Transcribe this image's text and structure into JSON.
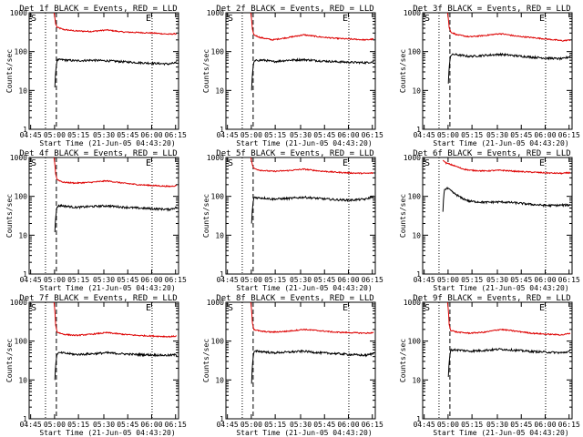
{
  "figure": {
    "title_template": "Det {n}f BLACK = Events, RED = LLD",
    "xlabel": "Start Time (21-Jun-05 04:43:20)",
    "ylabel": "Counts/sec",
    "x_ticks": [
      "04:45",
      "05:00",
      "05:15",
      "05:30",
      "05:45",
      "06:00",
      "06:15"
    ],
    "y_ticks": [
      "1",
      "10",
      "100",
      "1000"
    ],
    "start_marker": "S",
    "end_marker": "E",
    "colors": {
      "events": "#000000",
      "lld": "#dd0000",
      "axes": "#000000"
    }
  },
  "chart_data": [
    {
      "type": "line",
      "detector": "1f",
      "title": "Det 1f BLACK = Events, RED = LLD",
      "xlabel": "Start Time (21-Jun-05 04:43:20)",
      "ylabel": "Counts/sec",
      "yscale": "log",
      "ylim": [
        1,
        1000
      ],
      "xlim_minutes": [
        0,
        96
      ],
      "markers": {
        "start_dotted_min": 10.5,
        "dashed_min": 17.5,
        "end_dotted_min": 79
      },
      "series": [
        {
          "name": "LLD (red)",
          "x_minutes": [
            16,
            17,
            18,
            22,
            30,
            40,
            50,
            60,
            70,
            80,
            90,
            95
          ],
          "values": [
            1000,
            520,
            420,
            370,
            340,
            330,
            360,
            320,
            310,
            300,
            280,
            290
          ]
        },
        {
          "name": "Events (black)",
          "x_minutes": [
            16.5,
            18,
            20,
            25,
            30,
            40,
            50,
            60,
            70,
            80,
            90,
            95
          ],
          "values": [
            12,
            60,
            62,
            60,
            58,
            60,
            58,
            55,
            52,
            50,
            48,
            52
          ]
        }
      ]
    },
    {
      "type": "line",
      "detector": "2f",
      "title": "Det 2f BLACK = Events, RED = LLD",
      "xlabel": "Start Time (21-Jun-05 04:43:20)",
      "ylabel": "Counts/sec",
      "yscale": "log",
      "ylim": [
        1,
        1000
      ],
      "xlim_minutes": [
        0,
        96
      ],
      "markers": {
        "start_dotted_min": 10.5,
        "dashed_min": 17.5,
        "end_dotted_min": 79
      },
      "series": [
        {
          "name": "LLD (red)",
          "x_minutes": [
            16,
            17,
            18,
            22,
            30,
            40,
            50,
            60,
            70,
            80,
            90,
            95
          ],
          "values": [
            1000,
            380,
            270,
            230,
            200,
            230,
            270,
            240,
            220,
            210,
            200,
            210
          ]
        },
        {
          "name": "Events (black)",
          "x_minutes": [
            16.5,
            18,
            20,
            25,
            30,
            40,
            50,
            60,
            70,
            80,
            90,
            95
          ],
          "values": [
            10,
            55,
            60,
            60,
            55,
            60,
            62,
            58,
            55,
            53,
            52,
            55
          ]
        }
      ]
    },
    {
      "type": "line",
      "detector": "3f",
      "title": "Det 3f BLACK = Events, RED = LLD",
      "xlabel": "Start Time (21-Jun-05 04:43:20)",
      "ylabel": "Counts/sec",
      "yscale": "log",
      "ylim": [
        1,
        1000
      ],
      "xlim_minutes": [
        0,
        96
      ],
      "markers": {
        "start_dotted_min": 10.5,
        "dashed_min": 17.5,
        "end_dotted_min": 79
      },
      "series": [
        {
          "name": "LLD (red)",
          "x_minutes": [
            16,
            17,
            18,
            22,
            30,
            40,
            50,
            60,
            70,
            80,
            90,
            95
          ],
          "values": [
            1000,
            420,
            320,
            270,
            240,
            260,
            290,
            250,
            230,
            210,
            190,
            200
          ]
        },
        {
          "name": "Events (black)",
          "x_minutes": [
            16.5,
            18,
            20,
            25,
            30,
            40,
            50,
            60,
            70,
            80,
            90,
            95
          ],
          "values": [
            15,
            80,
            85,
            80,
            75,
            80,
            85,
            78,
            72,
            68,
            65,
            75
          ]
        }
      ]
    },
    {
      "type": "line",
      "detector": "4f",
      "title": "Det 4f BLACK = Events, RED = LLD",
      "xlabel": "Start Time (21-Jun-05 04:43:20)",
      "ylabel": "Counts/sec",
      "yscale": "log",
      "ylim": [
        1,
        1000
      ],
      "xlim_minutes": [
        0,
        96
      ],
      "markers": {
        "start_dotted_min": 10.5,
        "dashed_min": 17.5,
        "end_dotted_min": 79
      },
      "series": [
        {
          "name": "LLD (red)",
          "x_minutes": [
            16,
            17,
            18,
            22,
            30,
            40,
            50,
            60,
            70,
            80,
            90,
            95
          ],
          "values": [
            1000,
            380,
            270,
            230,
            220,
            230,
            250,
            220,
            200,
            190,
            180,
            190
          ]
        },
        {
          "name": "Events (black)",
          "x_minutes": [
            16.5,
            18,
            20,
            25,
            30,
            40,
            50,
            60,
            70,
            80,
            90,
            95
          ],
          "values": [
            12,
            55,
            58,
            55,
            52,
            55,
            57,
            53,
            50,
            48,
            46,
            52
          ]
        }
      ]
    },
    {
      "type": "line",
      "detector": "5f",
      "title": "Det 5f BLACK = Events, RED = LLD",
      "xlabel": "Start Time (21-Jun-05 04:43:20)",
      "ylabel": "Counts/sec",
      "yscale": "log",
      "ylim": [
        1,
        1000
      ],
      "xlim_minutes": [
        0,
        96
      ],
      "markers": {
        "start_dotted_min": 10.5,
        "dashed_min": 17.5,
        "end_dotted_min": 79
      },
      "series": [
        {
          "name": "LLD (red)",
          "x_minutes": [
            16,
            17,
            18,
            22,
            30,
            40,
            50,
            60,
            70,
            80,
            90,
            95
          ],
          "values": [
            1000,
            650,
            520,
            470,
            440,
            460,
            500,
            450,
            420,
            400,
            390,
            400
          ]
        },
        {
          "name": "Events (black)",
          "x_minutes": [
            16.5,
            18,
            20,
            25,
            30,
            40,
            50,
            60,
            70,
            80,
            90,
            95
          ],
          "values": [
            20,
            95,
            92,
            90,
            85,
            88,
            95,
            88,
            82,
            80,
            85,
            100
          ]
        }
      ]
    },
    {
      "type": "line",
      "detector": "6f",
      "title": "Det 6f BLACK = Events, RED = LLD",
      "xlabel": "Start Time (21-Jun-05 04:43:20)",
      "ylabel": "Counts/sec",
      "yscale": "log",
      "ylim": [
        1,
        1000
      ],
      "xlim_minutes": [
        0,
        96
      ],
      "markers": {
        "start_dotted_min": 10.5,
        "dashed_min": null,
        "end_dotted_min": 79
      },
      "series": [
        {
          "name": "LLD (red)",
          "x_minutes": [
            13,
            15,
            20,
            25,
            30,
            40,
            50,
            60,
            70,
            80,
            90,
            95
          ],
          "values": [
            850,
            720,
            620,
            520,
            470,
            450,
            470,
            440,
            420,
            400,
            390,
            410
          ]
        },
        {
          "name": "Events (black)",
          "x_minutes": [
            13,
            14,
            16,
            20,
            25,
            30,
            40,
            50,
            60,
            70,
            80,
            95
          ],
          "values": [
            40,
            150,
            160,
            120,
            90,
            75,
            70,
            72,
            68,
            62,
            58,
            60
          ]
        }
      ]
    },
    {
      "type": "line",
      "detector": "7f",
      "title": "Det 7f BLACK = Events, RED = LLD",
      "xlabel": "Start Time (21-Jun-05 04:43:20)",
      "ylabel": "Counts/sec",
      "yscale": "log",
      "ylim": [
        1,
        1000
      ],
      "xlim_minutes": [
        0,
        96
      ],
      "markers": {
        "start_dotted_min": 10.5,
        "dashed_min": 17.5,
        "end_dotted_min": 79
      },
      "series": [
        {
          "name": "LLD (red)",
          "x_minutes": [
            16,
            17,
            18,
            22,
            30,
            40,
            50,
            60,
            70,
            80,
            90,
            95
          ],
          "values": [
            1000,
            260,
            170,
            150,
            140,
            150,
            165,
            150,
            140,
            135,
            130,
            135
          ]
        },
        {
          "name": "Events (black)",
          "x_minutes": [
            16.5,
            18,
            20,
            25,
            30,
            40,
            50,
            60,
            70,
            80,
            90,
            95
          ],
          "values": [
            10,
            48,
            50,
            48,
            45,
            47,
            50,
            47,
            45,
            44,
            43,
            45
          ]
        }
      ]
    },
    {
      "type": "line",
      "detector": "8f",
      "title": "Det 8f BLACK = Events, RED = LLD",
      "xlabel": "Start Time (21-Jun-05 04:43:20)",
      "ylabel": "Counts/sec",
      "yscale": "log",
      "ylim": [
        1,
        1000
      ],
      "xlim_minutes": [
        0,
        96
      ],
      "markers": {
        "start_dotted_min": 10.5,
        "dashed_min": 17.5,
        "end_dotted_min": 79
      },
      "series": [
        {
          "name": "LLD (red)",
          "x_minutes": [
            16,
            17,
            18,
            22,
            30,
            40,
            50,
            60,
            70,
            80,
            90,
            95
          ],
          "values": [
            1000,
            290,
            200,
            180,
            170,
            180,
            200,
            185,
            170,
            165,
            160,
            165
          ]
        },
        {
          "name": "Events (black)",
          "x_minutes": [
            16.5,
            18,
            20,
            25,
            30,
            40,
            50,
            60,
            70,
            80,
            90,
            95
          ],
          "values": [
            8,
            52,
            55,
            53,
            50,
            52,
            55,
            50,
            48,
            45,
            43,
            48
          ]
        }
      ]
    },
    {
      "type": "line",
      "detector": "9f",
      "title": "Det 9f BLACK = Events, RED = LLD",
      "xlabel": "Start Time (21-Jun-05 04:43:20)",
      "ylabel": "Counts/sec",
      "yscale": "log",
      "ylim": [
        1,
        1000
      ],
      "xlim_minutes": [
        0,
        96
      ],
      "markers": {
        "start_dotted_min": 10.5,
        "dashed_min": 17.5,
        "end_dotted_min": 79
      },
      "series": [
        {
          "name": "LLD (red)",
          "x_minutes": [
            16,
            17,
            18,
            22,
            30,
            40,
            50,
            60,
            70,
            80,
            90,
            95
          ],
          "values": [
            1000,
            270,
            190,
            170,
            160,
            170,
            200,
            180,
            160,
            150,
            145,
            160
          ]
        },
        {
          "name": "Events (black)",
          "x_minutes": [
            16.5,
            18,
            20,
            25,
            30,
            40,
            50,
            60,
            70,
            80,
            90,
            95
          ],
          "values": [
            12,
            58,
            60,
            58,
            55,
            58,
            62,
            58,
            54,
            52,
            50,
            55
          ]
        }
      ]
    }
  ]
}
